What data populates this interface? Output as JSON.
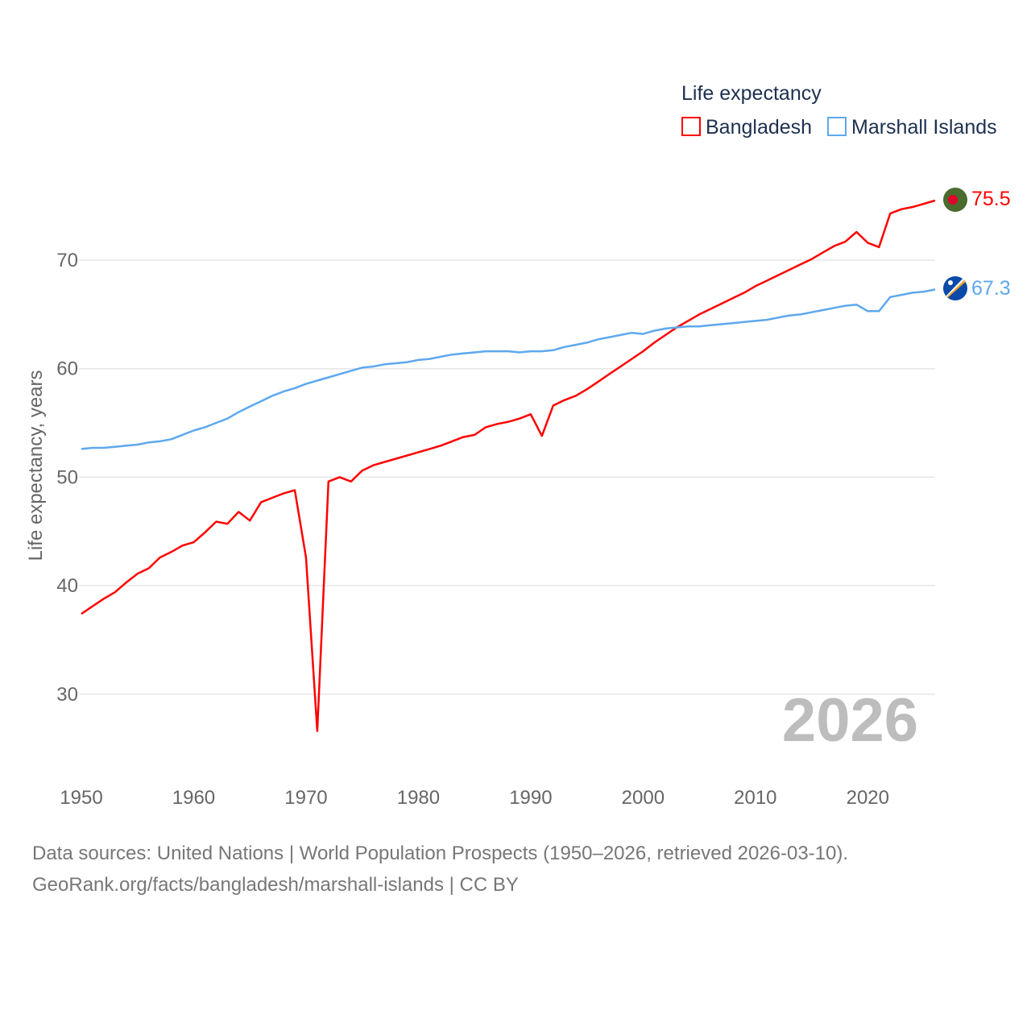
{
  "chart_data": {
    "type": "line",
    "legend_title": "Life expectancy",
    "legend_placement": "top-right",
    "ylabel": "Life expectancy, years",
    "xlabel": "",
    "ylim": [
      23,
      78
    ],
    "xlim": [
      1950,
      2026
    ],
    "yticks": [
      30,
      40,
      50,
      60,
      70
    ],
    "xticks": [
      1950,
      1960,
      1970,
      1980,
      1990,
      2000,
      2010,
      2020
    ],
    "grid": true,
    "year_watermark": "2026",
    "x_start": 1950,
    "series": [
      {
        "name": "Bangladesh",
        "color": "#ff0000",
        "end_label": "75.5",
        "flag": "bangladesh-flag",
        "values": [
          37.4,
          38.1,
          38.8,
          39.4,
          40.3,
          41.1,
          41.6,
          42.6,
          43.1,
          43.7,
          44.0,
          44.9,
          45.9,
          45.7,
          46.8,
          46.0,
          47.7,
          48.1,
          48.5,
          48.8,
          42.6,
          26.6,
          49.6,
          50.0,
          49.6,
          50.6,
          51.1,
          51.4,
          51.7,
          52.0,
          52.3,
          52.6,
          52.9,
          53.3,
          53.7,
          53.9,
          54.6,
          54.9,
          55.1,
          55.4,
          55.8,
          53.8,
          56.6,
          57.1,
          57.5,
          58.1,
          58.8,
          59.5,
          60.2,
          60.9,
          61.6,
          62.4,
          63.1,
          63.8,
          64.4,
          65.0,
          65.5,
          66.0,
          66.5,
          67.0,
          67.6,
          68.1,
          68.6,
          69.1,
          69.6,
          70.1,
          70.7,
          71.3,
          71.7,
          72.6,
          71.6,
          71.2,
          74.3,
          74.7,
          74.9,
          75.2,
          75.5
        ]
      },
      {
        "name": "Marshall Islands",
        "color": "#5ea8ee",
        "end_label": "67.3",
        "flag": "marshall-islands-flag",
        "values": [
          52.6,
          52.7,
          52.7,
          52.8,
          52.9,
          53.0,
          53.2,
          53.3,
          53.5,
          53.9,
          54.3,
          54.6,
          55.0,
          55.4,
          56.0,
          56.5,
          57.0,
          57.5,
          57.9,
          58.2,
          58.6,
          58.9,
          59.2,
          59.5,
          59.8,
          60.1,
          60.2,
          60.4,
          60.5,
          60.6,
          60.8,
          60.9,
          61.1,
          61.3,
          61.4,
          61.5,
          61.6,
          61.6,
          61.6,
          61.5,
          61.6,
          61.6,
          61.7,
          62.0,
          62.2,
          62.4,
          62.7,
          62.9,
          63.1,
          63.3,
          63.2,
          63.5,
          63.7,
          63.8,
          63.9,
          63.9,
          64.0,
          64.1,
          64.2,
          64.3,
          64.4,
          64.5,
          64.7,
          64.9,
          65.0,
          65.2,
          65.4,
          65.6,
          65.8,
          65.9,
          65.3,
          65.3,
          66.6,
          66.8,
          67.0,
          67.1,
          67.3
        ]
      }
    ]
  },
  "footer": {
    "line1": "Data sources: United Nations | World Population Prospects (1950–2026, retrieved 2026-03-10).",
    "line2": "GeoRank.org/facts/bangladesh/marshall-islands | CC BY"
  }
}
